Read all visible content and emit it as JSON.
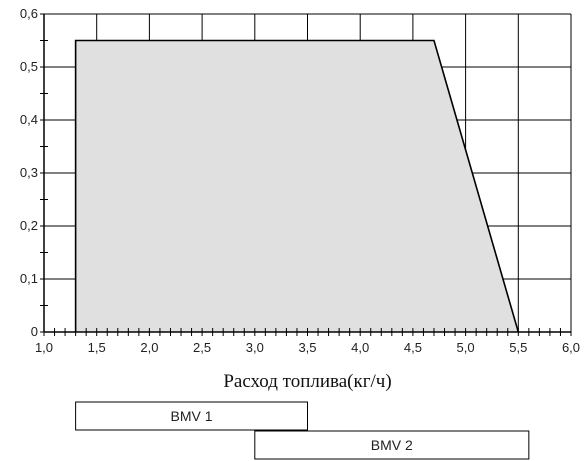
{
  "chart_data": {
    "type": "area",
    "title": "",
    "xlabel": "Расход топлива(кг/ч)",
    "ylabel": "",
    "xlim": [
      1.0,
      6.0
    ],
    "ylim": [
      0,
      0.6
    ],
    "x_ticks": [
      1.0,
      1.5,
      2.0,
      2.5,
      3.0,
      3.5,
      4.0,
      4.5,
      5.0,
      5.5,
      6.0
    ],
    "x_tick_labels": [
      "1,0",
      "1,5",
      "2,0",
      "2,5",
      "3,0",
      "3,5",
      "4,0",
      "4,5",
      "5,0",
      "5,5",
      "6,0"
    ],
    "y_ticks": [
      0,
      0.1,
      0.2,
      0.3,
      0.4,
      0.5,
      0.6
    ],
    "y_tick_labels": [
      "0",
      "0,1",
      "0,2",
      "0,3",
      "0,4",
      "0,5",
      "0,6"
    ],
    "grid": true,
    "fill_color": "#e0e0e0",
    "line_color": "#000000",
    "series": [
      {
        "x": [
          1.3,
          1.3,
          4.7,
          5.5
        ],
        "y": [
          0,
          0.55,
          0.55,
          0
        ]
      }
    ],
    "ranges": [
      {
        "label": "BMV 1",
        "start": 1.3,
        "end": 3.5
      },
      {
        "label": "BMV 2",
        "start": 3.0,
        "end": 5.6
      }
    ]
  }
}
